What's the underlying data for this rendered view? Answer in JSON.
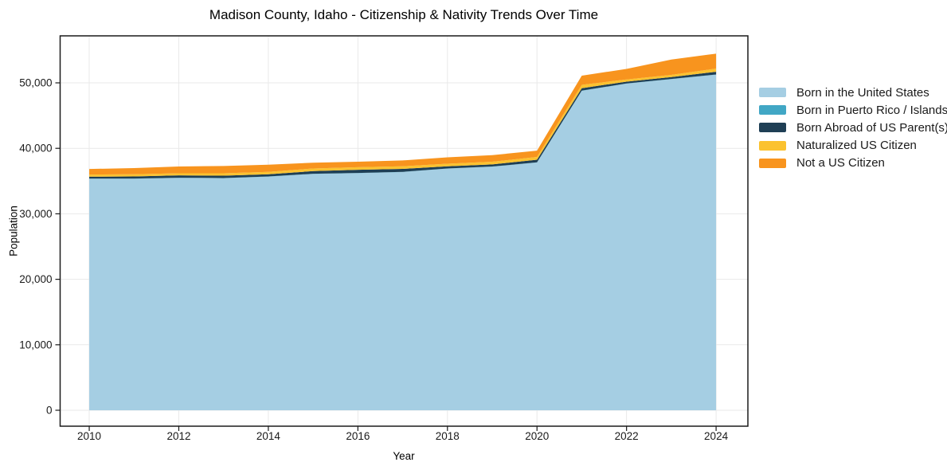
{
  "chart": {
    "title": "Madison County, Idaho - Citizenship & Nativity Trends Over Time",
    "xlabel": "Year",
    "ylabel": "Population"
  },
  "chart_data": {
    "type": "area",
    "stacked": true,
    "title": "Madison County, Idaho - Citizenship & Nativity Trends Over Time",
    "xlabel": "Year",
    "ylabel": "Population",
    "x": [
      2010,
      2011,
      2012,
      2013,
      2014,
      2015,
      2016,
      2017,
      2018,
      2019,
      2020,
      2021,
      2022,
      2023,
      2024
    ],
    "series": [
      {
        "name": "Born in the United States",
        "color": "#A5CEE3",
        "values": [
          35350,
          35360,
          35480,
          35440,
          35680,
          36090,
          36210,
          36380,
          36900,
          37190,
          37830,
          48780,
          49880,
          50570,
          51250
        ]
      },
      {
        "name": "Born in Puerto Rico / Islands",
        "color": "#41A7C5",
        "values": [
          30,
          30,
          30,
          30,
          30,
          30,
          30,
          30,
          30,
          30,
          30,
          30,
          30,
          30,
          30
        ]
      },
      {
        "name": "Born Abroad of US Parent(s)",
        "color": "#1F3F55",
        "values": [
          290,
          320,
          360,
          360,
          330,
          400,
          480,
          450,
          330,
          320,
          400,
          370,
          280,
          280,
          410
        ]
      },
      {
        "name": "Naturalized US Citizen",
        "color": "#FBC22F",
        "values": [
          330,
          330,
          320,
          370,
          370,
          400,
          400,
          400,
          400,
          410,
          420,
          520,
          330,
          330,
          490
        ]
      },
      {
        "name": "Not a US Citizen",
        "color": "#F8941E",
        "values": [
          850,
          940,
          1040,
          1100,
          1090,
          890,
          830,
          890,
          970,
          1010,
          960,
          1400,
          1610,
          2350,
          2280
        ]
      }
    ],
    "x_ticks": [
      "2010",
      "2012",
      "2014",
      "2016",
      "2018",
      "2020",
      "2022",
      "2024"
    ],
    "x_tick_values": [
      2010,
      2012,
      2014,
      2016,
      2018,
      2020,
      2022,
      2024
    ],
    "y_ticks": [
      0,
      10000,
      20000,
      30000,
      40000,
      50000
    ],
    "y_tick_labels": [
      "0",
      "10,000",
      "20,000",
      "30,000",
      "40,000",
      "50,000"
    ],
    "xlim": [
      2009.35,
      2024.71
    ],
    "ylim": [
      -2433,
      57178
    ],
    "grid": true,
    "legend_position": "right",
    "colors": {
      "background": "#ffffff",
      "grid": "#e9e9e9",
      "frame": "#1a1a1a",
      "tick": "#1a1a1a"
    }
  }
}
